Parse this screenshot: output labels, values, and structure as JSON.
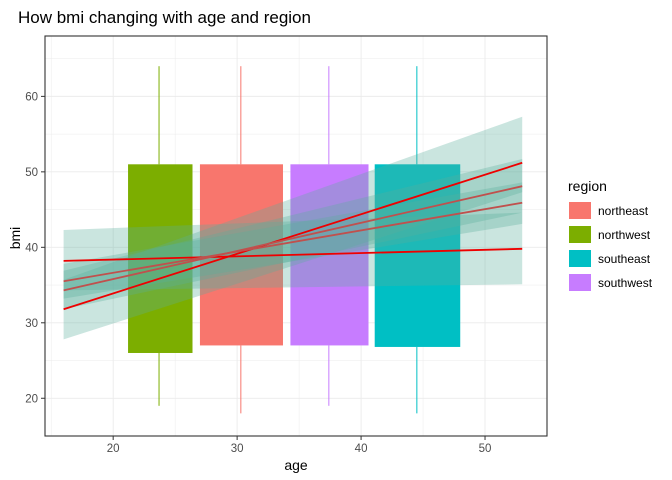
{
  "chart_data": {
    "type": "boxplot",
    "title": "How bmi changing with age and region",
    "xlabel": "age",
    "ylabel": "bmi",
    "xlim": [
      14.5,
      55
    ],
    "ylim": [
      15,
      68
    ],
    "xticks": [
      20,
      30,
      40,
      50
    ],
    "yticks": [
      20,
      30,
      40,
      50,
      60
    ],
    "grid": true,
    "legend": {
      "title": "region",
      "position": "right",
      "entries": [
        {
          "name": "northeast",
          "color": "#F8766D"
        },
        {
          "name": "northwest",
          "color": "#7CAE00"
        },
        {
          "name": "southeast",
          "color": "#00BFC4"
        },
        {
          "name": "southwest",
          "color": "#C77CFF"
        }
      ]
    },
    "boxes": [
      {
        "region": "northwest",
        "x_start": 21.2,
        "x_end": 26.4,
        "whisker_x": 23.7,
        "ymin": 19,
        "q1": 26,
        "q3": 51,
        "ymax": 64
      },
      {
        "region": "northeast",
        "x_start": 27.0,
        "x_end": 33.7,
        "whisker_x": 30.3,
        "ymin": 18,
        "q1": 27,
        "q3": 51,
        "ymax": 64
      },
      {
        "region": "southwest",
        "x_start": 34.3,
        "x_end": 40.6,
        "whisker_x": 37.4,
        "ymin": 19,
        "q1": 27,
        "q3": 51,
        "ymax": 64
      },
      {
        "region": "southeast",
        "x_start": 41.1,
        "x_end": 48.0,
        "whisker_x": 44.5,
        "ymin": 18,
        "q1": 26.8,
        "q3": 51,
        "ymax": 64
      }
    ],
    "trend_lines": [
      {
        "x": [
          16,
          53
        ],
        "y": [
          31.8,
          51.2
        ],
        "band_lower": [
          27.8,
          47.3
        ],
        "band_upper": [
          35.7,
          57.3
        ],
        "color": "#EE0000"
      },
      {
        "x": [
          16,
          53
        ],
        "y": [
          38.2,
          39.8
        ],
        "band_lower": [
          34.3,
          35.1
        ],
        "band_upper": [
          42.3,
          44.6
        ],
        "color": "#EE0000"
      },
      {
        "x": [
          16,
          53
        ],
        "y": [
          34.3,
          48.1
        ],
        "band_lower": [
          31.8,
          44.6
        ],
        "band_upper": [
          36.9,
          51.7
        ],
        "color": "#C0504D"
      },
      {
        "x": [
          16,
          53
        ],
        "y": [
          35.5,
          45.9
        ],
        "band_lower": [
          33.2,
          43.1
        ],
        "band_upper": [
          37.8,
          48.6
        ],
        "color": "#C0504D"
      }
    ],
    "band_color": "#5AAE9C"
  }
}
